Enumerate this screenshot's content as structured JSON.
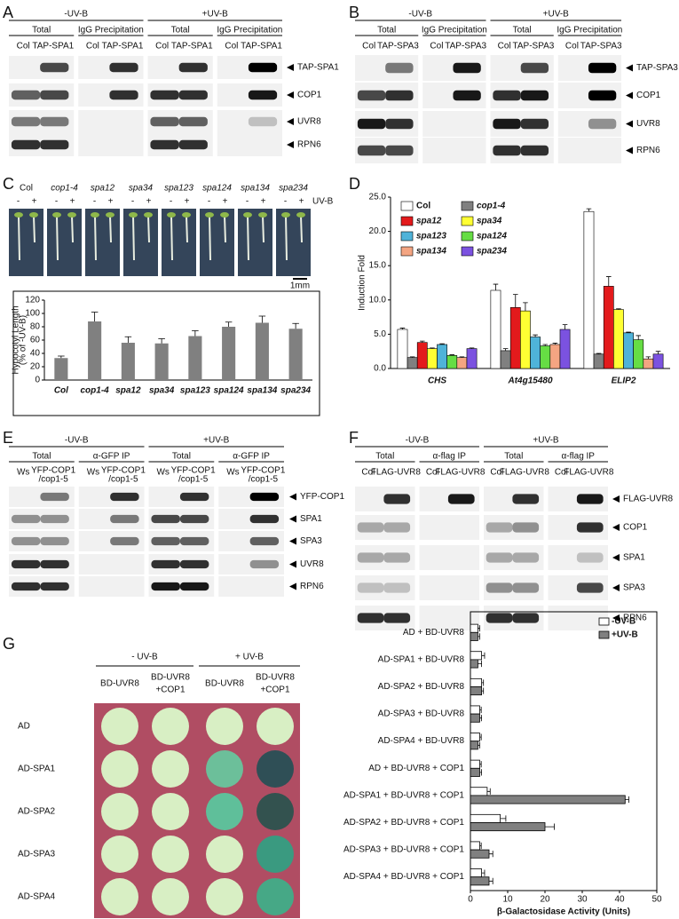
{
  "panels": {
    "A": {
      "letter": "A",
      "conditions": [
        "-UV-B",
        "+UV-B"
      ],
      "fractions": [
        "Total",
        "IgG Precipitation"
      ],
      "lanes": [
        [
          "Col"
        ],
        [
          "TAP-SPA1"
        ]
      ],
      "proteins": [
        "TAP-SPA1",
        "COP1",
        "UVR8",
        "RPN6"
      ]
    },
    "B": {
      "letter": "B",
      "conditions": [
        "-UV-B",
        "+UV-B"
      ],
      "fractions": [
        "Total",
        "IgG Precipitation"
      ],
      "lanes": [
        [
          "Col"
        ],
        [
          "TAP-SPA3"
        ]
      ],
      "proteins": [
        "TAP-SPA3",
        "COP1",
        "UVR8",
        "RPN6"
      ]
    },
    "C": {
      "letter": "C",
      "genotypes": [
        "Col",
        "cop1-4",
        "spa12",
        "spa34",
        "spa123",
        "spa124",
        "spa134",
        "spa234"
      ],
      "treatments": [
        "-",
        "+"
      ],
      "treatment_label": "UV-B",
      "scale_bar": "1mm"
    },
    "D": {
      "letter": "D"
    },
    "E": {
      "letter": "E",
      "conditions": [
        "-UV-B",
        "+UV-B"
      ],
      "fractions": [
        "Total",
        "α-GFP IP"
      ],
      "lanes": [
        [
          "Ws"
        ],
        [
          "YFP-COP1",
          "/cop1-5"
        ]
      ],
      "proteins": [
        "YFP-COP1",
        "SPA1",
        "SPA3",
        "UVR8",
        "RPN6"
      ]
    },
    "F": {
      "letter": "F",
      "conditions": [
        "-UV-B",
        "+UV-B"
      ],
      "fractions": [
        "Total",
        "α-flag IP"
      ],
      "lanes": [
        [
          "Col"
        ],
        [
          "FLAG-UVR8"
        ]
      ],
      "proteins": [
        "FLAG-UVR8",
        "COP1",
        "SPA1",
        "SPA3",
        "RPN6"
      ]
    },
    "G": {
      "letter": "G",
      "conditions": [
        "- UV-B",
        "+ UV-B"
      ],
      "strains": [
        [
          "BD-UVR8"
        ],
        [
          "BD-UVR8",
          "+COP1"
        ]
      ],
      "rows": [
        "AD",
        "AD-SPA1",
        "AD-SPA2",
        "AD-SPA3",
        "AD-SPA4"
      ]
    }
  },
  "chart_data": [
    {
      "type": "bar",
      "ylabel": [
        "Hypocotyl Length",
        "(% of -UV-B)"
      ],
      "categories": [
        "Col",
        "cop1-4",
        "spa12",
        "spa34",
        "spa123",
        "spa124",
        "spa134",
        "spa234"
      ],
      "values": [
        33,
        88,
        56,
        55,
        66,
        80,
        86,
        77
      ],
      "errors": [
        3,
        14,
        9,
        7,
        8,
        7,
        10,
        8
      ],
      "color": "#808080",
      "ylim": [
        0,
        120
      ],
      "yticks": [
        0,
        20,
        40,
        60,
        80,
        100,
        120
      ]
    },
    {
      "type": "bar",
      "ylabel": "Induction Fold",
      "categories": [
        "CHS",
        "At4g15480",
        "ELIP2"
      ],
      "legend": "upper left",
      "series": [
        {
          "name": "Col",
          "color": "#ffffff",
          "values": [
            5.7,
            11.4,
            22.9
          ],
          "errors": [
            0.2,
            0.9,
            0.4
          ]
        },
        {
          "name": "cop1-4",
          "color": "#808080",
          "values": [
            1.6,
            2.6,
            2.1
          ],
          "errors": [
            0.1,
            0.3,
            0.1
          ]
        },
        {
          "name": "spa12",
          "color": "#e31a1c",
          "values": [
            3.8,
            8.9,
            12.0
          ],
          "errors": [
            0.2,
            1.9,
            1.4
          ]
        },
        {
          "name": "spa34",
          "color": "#ffff33",
          "values": [
            2.9,
            8.4,
            8.6
          ],
          "errors": [
            0.1,
            1.2,
            0.1
          ]
        },
        {
          "name": "spa123",
          "color": "#4fb3d9",
          "values": [
            3.5,
            4.6,
            5.2
          ],
          "errors": [
            0.1,
            0.3,
            0.1
          ]
        },
        {
          "name": "spa124",
          "color": "#66dd44",
          "values": [
            1.9,
            3.3,
            4.2
          ],
          "errors": [
            0.1,
            0.2,
            0.6
          ]
        },
        {
          "name": "spa134",
          "color": "#f4a582",
          "values": [
            1.6,
            3.5,
            1.4
          ],
          "errors": [
            0.1,
            0.2,
            0.3
          ]
        },
        {
          "name": "spa234",
          "color": "#7b52e0",
          "values": [
            2.9,
            5.7,
            2.1
          ],
          "errors": [
            0.1,
            0.7,
            0.4
          ]
        }
      ],
      "ylim": [
        0,
        25
      ],
      "yticks": [
        {
          "value": 0,
          "label": "0.0"
        },
        {
          "value": 5,
          "label": "5.0"
        },
        {
          "value": 10,
          "label": "10.0"
        },
        {
          "value": 15,
          "label": "15.0"
        },
        {
          "value": 20,
          "label": "20.0"
        },
        {
          "value": 25,
          "label": "25.0"
        }
      ]
    },
    {
      "type": "hbar",
      "xlabel": "β-Galactosidase Activity (Units)",
      "legend": "upper right",
      "categories": [
        "AD + BD-UVR8",
        "AD-SPA1 + BD-UVR8",
        "AD-SPA2 + BD-UVR8",
        "AD-SPA3 + BD-UVR8",
        "AD-SPA4 + BD-UVR8",
        "AD + BD-UVR8 + COP1",
        "AD-SPA1 + BD-UVR8 + COP1",
        "AD-SPA2 + BD-UVR8 + COP1",
        "AD-SPA3 + BD-UVR8 + COP1",
        "AD-SPA4 + BD-UVR8 + COP1"
      ],
      "series": [
        {
          "name": "-UV-B",
          "color": "#ffffff",
          "values": [
            2,
            3,
            3,
            2.5,
            2.5,
            2.5,
            4.5,
            8,
            2.5,
            3
          ],
          "errors": [
            0.5,
            0.8,
            0.5,
            0.4,
            0.4,
            0.4,
            0.8,
            1.5,
            0.4,
            0.8
          ]
        },
        {
          "name": "+UV-B",
          "color": "#808080",
          "values": [
            2,
            2,
            3,
            2.5,
            2,
            2.5,
            41.5,
            20,
            5,
            5
          ],
          "errors": [
            0.5,
            1,
            0.5,
            0.5,
            0.5,
            0.5,
            1,
            2.5,
            1,
            1
          ]
        }
      ],
      "xlim": [
        0,
        50
      ],
      "xticks": [
        0,
        10,
        20,
        30,
        40,
        50
      ]
    }
  ]
}
